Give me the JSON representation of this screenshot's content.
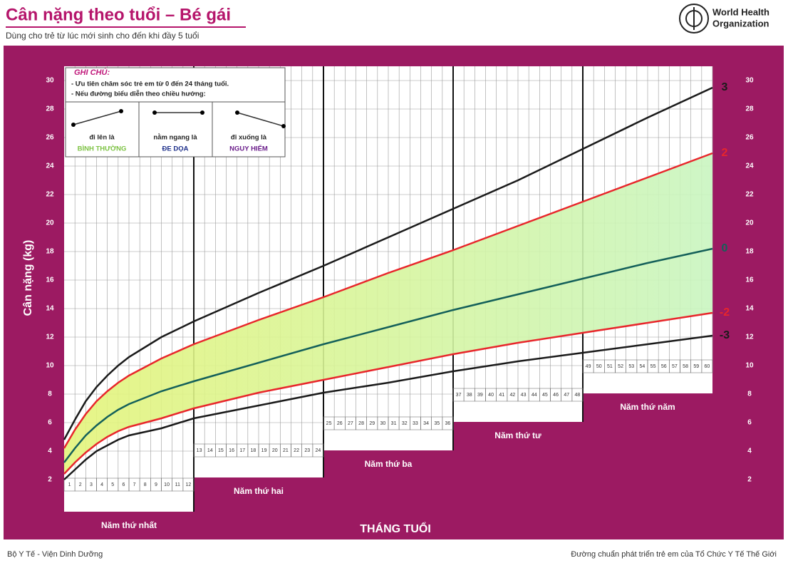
{
  "header": {
    "title": "Cân nặng theo tuổi – Bé gái",
    "subtitle": "Dùng cho trẻ từ lúc mới sinh cho đến khi đầy 5 tuổi",
    "org_line1": "World Health",
    "org_line2": "Organization"
  },
  "footer": {
    "left": "Bộ Y Tế - Viện Dinh Dưỡng",
    "right": "Đường chuẩn phát triển trẻ em của Tổ Chức Y Tế Thế Giới"
  },
  "chart_data": {
    "type": "line",
    "y_label": "Cân nặng (kg)",
    "x_label": "THÁNG TUỔI",
    "period_labels": [
      "Năm thứ nhất",
      "Năm thứ hai",
      "Năm thứ ba",
      "Năm thứ tư",
      "Năm thứ năm"
    ],
    "note": {
      "title": "GHI CHÚ:",
      "line1": "- Ưu tiên chăm sóc trẻ em từ 0 đến 24 tháng tuổi.",
      "line2": "- Nếu đường biểu diễn theo chiều hướng:",
      "items": [
        {
          "text": "đi lên là",
          "status": "BÌNH THƯỜNG",
          "color": "#7cc242"
        },
        {
          "text": "nằm ngang là",
          "status": "ĐE DỌA",
          "color": "#1d2f8a"
        },
        {
          "text": "đi xuống là",
          "status": "NGUY HIỂM",
          "color": "#6a1d8a"
        }
      ]
    },
    "x": [
      0,
      1,
      2,
      3,
      4,
      5,
      6,
      9,
      12,
      18,
      24,
      30,
      36,
      42,
      48,
      54,
      60
    ],
    "series": [
      {
        "name": "-3",
        "color": "#1a1a1a",
        "values": [
          2.0,
          2.7,
          3.4,
          4.0,
          4.4,
          4.8,
          5.1,
          5.6,
          6.3,
          7.2,
          8.1,
          8.8,
          9.6,
          10.3,
          10.9,
          11.5,
          12.1
        ]
      },
      {
        "name": "-2",
        "color": "#e8262b",
        "values": [
          2.4,
          3.2,
          3.9,
          4.5,
          5.0,
          5.4,
          5.7,
          6.3,
          7.0,
          8.1,
          9.0,
          9.9,
          10.8,
          11.6,
          12.3,
          13.0,
          13.7
        ]
      },
      {
        "name": "0",
        "color": "#14605a",
        "values": [
          3.2,
          4.2,
          5.1,
          5.8,
          6.4,
          6.9,
          7.3,
          8.2,
          8.9,
          10.2,
          11.5,
          12.7,
          13.9,
          15.0,
          16.1,
          17.2,
          18.2
        ]
      },
      {
        "name": "2",
        "color": "#e8262b",
        "values": [
          4.2,
          5.5,
          6.6,
          7.5,
          8.2,
          8.8,
          9.3,
          10.5,
          11.5,
          13.2,
          14.8,
          16.5,
          18.1,
          19.8,
          21.5,
          23.2,
          24.9
        ]
      },
      {
        "name": "3",
        "color": "#1a1a1a",
        "values": [
          4.8,
          6.2,
          7.5,
          8.5,
          9.3,
          10.0,
          10.6,
          12.0,
          13.1,
          15.1,
          17.0,
          19.0,
          21.0,
          23.0,
          25.2,
          27.4,
          29.5
        ]
      }
    ],
    "xlim": [
      0,
      60
    ],
    "xticks": [
      1,
      2,
      3,
      4,
      5,
      6,
      7,
      8,
      9,
      10,
      11,
      12,
      13,
      14,
      15,
      16,
      17,
      18,
      19,
      20,
      21,
      22,
      23,
      24,
      25,
      26,
      27,
      28,
      29,
      30,
      31,
      32,
      33,
      34,
      35,
      36,
      37,
      38,
      39,
      40,
      41,
      42,
      43,
      44,
      45,
      46,
      47,
      48,
      49,
      50,
      51,
      52,
      53,
      54,
      55,
      56,
      57,
      58,
      59,
      60
    ],
    "ylim": [
      2,
      30
    ],
    "yticks": [
      2,
      4,
      6,
      8,
      10,
      12,
      14,
      16,
      18,
      20,
      22,
      24,
      26,
      28,
      30
    ],
    "grid": true
  }
}
